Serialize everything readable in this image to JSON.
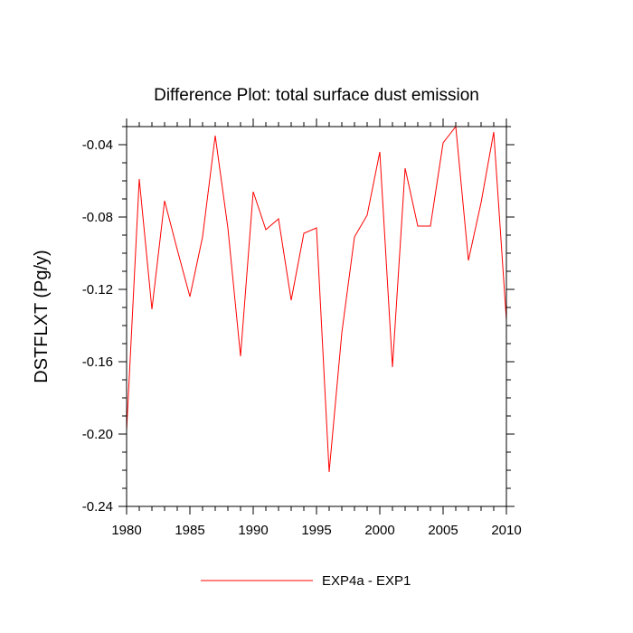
{
  "chart_data": {
    "type": "line",
    "title": "Difference Plot: total surface dust emission",
    "xlabel": "",
    "ylabel": "DSTFLXT  (Pg/y)",
    "xlim": [
      1980,
      2010
    ],
    "ylim": [
      -0.24,
      -0.03
    ],
    "xticks": [
      1980,
      1985,
      1990,
      1995,
      2000,
      2005,
      2010
    ],
    "xtick_labels": [
      "1980",
      "1985",
      "1990",
      "1995",
      "2000",
      "2005",
      "2010"
    ],
    "yticks": [
      -0.04,
      -0.08,
      -0.12,
      -0.16,
      -0.2,
      -0.24
    ],
    "ytick_labels": [
      "-0.04",
      "-0.08",
      "-0.12",
      "-0.16",
      "-0.20",
      "-0.24"
    ],
    "grid": false,
    "legend_position": "bottom-center",
    "series": [
      {
        "name": "EXP4a - EXP1",
        "color": "#ff0000",
        "x": [
          1980,
          1981,
          1982,
          1983,
          1984,
          1985,
          1986,
          1987,
          1988,
          1989,
          1990,
          1991,
          1992,
          1993,
          1994,
          1995,
          1996,
          1997,
          1998,
          1999,
          2000,
          2001,
          2002,
          2003,
          2004,
          2005,
          2006,
          2007,
          2008,
          2009,
          2010
        ],
        "values": [
          -0.198,
          -0.059,
          -0.131,
          -0.071,
          -0.098,
          -0.124,
          -0.091,
          -0.035,
          -0.086,
          -0.157,
          -0.066,
          -0.087,
          -0.081,
          -0.126,
          -0.089,
          -0.086,
          -0.221,
          -0.144,
          -0.091,
          -0.079,
          -0.044,
          -0.163,
          -0.053,
          -0.085,
          -0.085,
          -0.039,
          -0.03,
          -0.104,
          -0.072,
          -0.033,
          -0.137
        ]
      }
    ]
  }
}
